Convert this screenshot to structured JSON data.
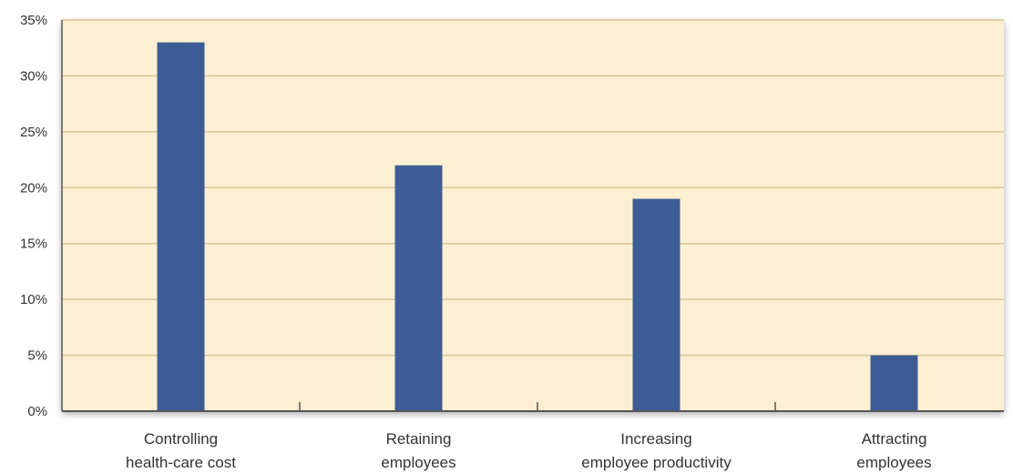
{
  "chart_data": {
    "type": "bar",
    "title": "",
    "xlabel": "",
    "ylabel": "",
    "categories": [
      [
        "Controlling",
        "health-care cost"
      ],
      [
        "Retaining",
        "employees"
      ],
      [
        "Increasing",
        "employee productivity"
      ],
      [
        "Attracting",
        "employees"
      ]
    ],
    "values": [
      33,
      22,
      19,
      5
    ],
    "y_ticks": [
      "0%",
      "5%",
      "10%",
      "15%",
      "20%",
      "25%",
      "30%",
      "35%"
    ],
    "ylim": [
      0,
      35
    ],
    "y_unit": "%",
    "grid": true,
    "legend": "none",
    "colors": {
      "bar": "#3d5c96",
      "plot_background": "#fdf0d2",
      "gridline": "#d9c49a",
      "axis": "#555555"
    }
  }
}
